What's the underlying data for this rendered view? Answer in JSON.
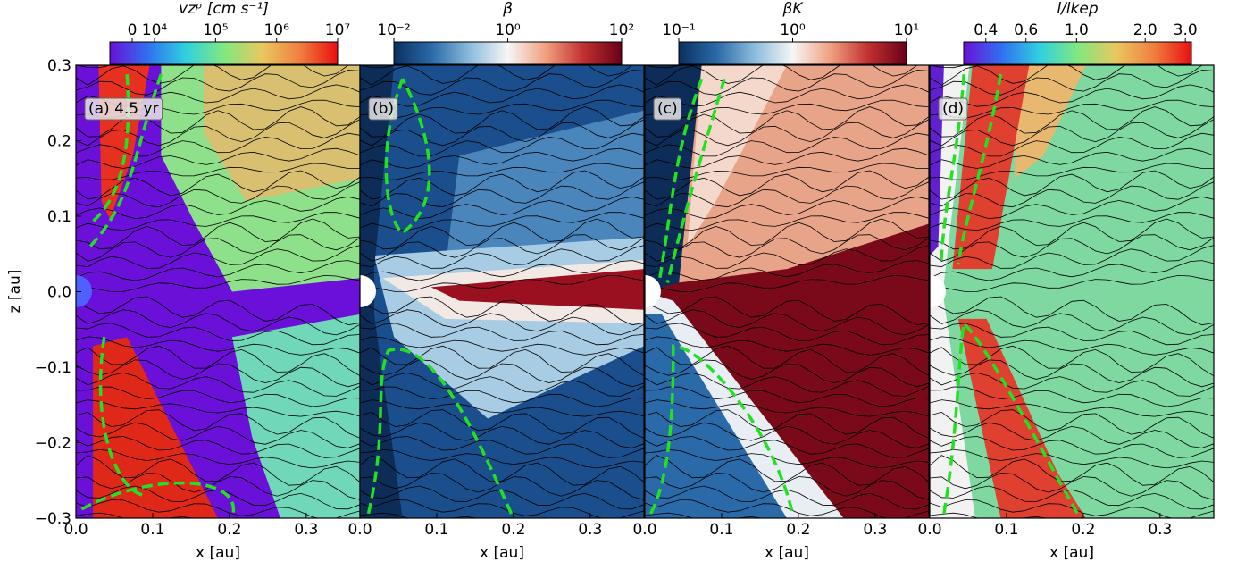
{
  "chart_data": [
    {
      "type": "image",
      "panel_label": "(a) 4.5 yr",
      "colorbar_label": "vzᵖ [cm s⁻¹]",
      "colorbar_scale": "symlog",
      "colorbar_linthresh": 10000,
      "colorbar_linscale": 0.366,
      "colorbar_lim": [
        -10000,
        10000000
      ],
      "colorbar_ticks": [
        0,
        {
          "value": 10000,
          "label": "10⁴"
        },
        {
          "value": 100000,
          "label": "10⁵"
        },
        {
          "value": 1000000,
          "label": "10⁶"
        },
        {
          "value": 10000000,
          "label": "10⁷"
        }
      ],
      "colormap": [
        "#6a10d8",
        "#3070f0",
        "#30d0e0",
        "#80e880",
        "#e8c860",
        "#f08040",
        "#e81010"
      ],
      "xlabel": "x [au]",
      "ylabel": "z [au]",
      "xlim": [
        0,
        0.37
      ],
      "xticks": [
        {
          "value": 0,
          "label": "0.0"
        },
        0.1,
        0.2,
        0.3
      ],
      "ylim": [
        -0.3,
        0.3
      ],
      "yticks": [
        {
          "value": -0.3,
          "label": "−0.3"
        },
        {
          "value": -0.2,
          "label": "−0.2"
        },
        {
          "value": -0.1,
          "label": "−0.1"
        },
        {
          "value": 0,
          "label": "0.0"
        },
        0.1,
        0.2,
        0.3
      ]
    },
    {
      "type": "image",
      "panel_label": "(b)",
      "colorbar_label": "β",
      "colorbar_scale": "log",
      "colorbar_lim": [
        0.01,
        100
      ],
      "colorbar_ticks": [
        {
          "value": 0.01,
          "label": "10⁻²"
        },
        {
          "value": 1,
          "label": "10⁰"
        },
        {
          "value": 100,
          "label": "10²"
        }
      ],
      "colormap": [
        "#0a3060",
        "#2a6aa8",
        "#8cbcdc",
        "#f6f6f6",
        "#f0a080",
        "#c03030",
        "#6a0018"
      ],
      "xlabel": "x [au]",
      "xlim": [
        0,
        0.37
      ],
      "xticks": [
        {
          "value": 0,
          "label": "0.0"
        },
        0.1,
        0.2,
        0.3
      ]
    },
    {
      "type": "image",
      "panel_label": "(c)",
      "colorbar_label": "βK",
      "colorbar_scale": "log",
      "colorbar_lim": [
        0.1,
        10
      ],
      "colorbar_ticks": [
        {
          "value": 0.1,
          "label": "10⁻¹"
        },
        {
          "value": 1,
          "label": "10⁰"
        },
        {
          "value": 10,
          "label": "10¹"
        }
      ],
      "colormap": [
        "#0a3060",
        "#2a6aa8",
        "#8cbcdc",
        "#f6f6f6",
        "#f0a080",
        "#c03030",
        "#6a0018"
      ],
      "xlabel": "x [au]",
      "xlim": [
        0,
        0.37
      ],
      "xticks": [
        {
          "value": 0,
          "label": "0.0"
        },
        0.1,
        0.2,
        0.3
      ]
    },
    {
      "type": "image",
      "panel_label": "(d)",
      "colorbar_label": "l/lkep",
      "colorbar_scale": "log",
      "colorbar_lim": [
        0.32,
        3.19
      ],
      "colorbar_ticks": [
        0.4,
        0.6,
        {
          "value": 1,
          "label": "1.0"
        },
        {
          "value": 2,
          "label": "2.0"
        },
        {
          "value": 3,
          "label": "3.0"
        }
      ],
      "colormap": [
        "#6a10d8",
        "#3070f0",
        "#30d0e0",
        "#80e880",
        "#e8c860",
        "#f08040",
        "#e81010"
      ],
      "xlabel": "x [au]",
      "xlim": [
        0,
        0.37
      ],
      "xticks": [
        {
          "value": 0,
          "label": "0.0"
        },
        0.1,
        0.2,
        0.3
      ]
    }
  ]
}
